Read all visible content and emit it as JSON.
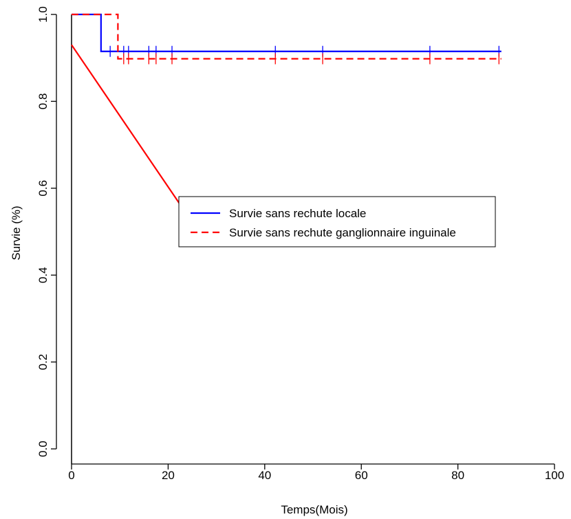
{
  "chart_data": {
    "type": "line",
    "title": "",
    "xlabel": "Temps(Mois)",
    "ylabel": "Survie (%)",
    "xlim": [
      0,
      100
    ],
    "ylim": [
      0,
      1
    ],
    "x_ticks": [
      0,
      20,
      40,
      60,
      80,
      100
    ],
    "y_ticks": [
      0.0,
      0.2,
      0.4,
      0.6,
      0.8,
      1.0
    ],
    "x_tick_labels": [
      "0",
      "20",
      "40",
      "60",
      "80",
      "100"
    ],
    "y_tick_labels": [
      "0.0",
      "0.2",
      "0.4",
      "0.6",
      "0.8",
      "1.0"
    ],
    "grid": false,
    "legend_position": "center-right",
    "series": [
      {
        "name": "Survie sans rechute locale",
        "color": "#0000ff",
        "line_style": "solid",
        "step": true,
        "points": [
          [
            0,
            1.0
          ],
          [
            6.1,
            1.0
          ],
          [
            6.1,
            0.915
          ],
          [
            89,
            0.915
          ]
        ],
        "censor_marks": [
          8,
          10.8,
          11.8,
          16,
          17.5,
          20.8,
          42.2,
          52,
          74.2,
          88.5
        ]
      },
      {
        "name": "Survie sans rechute ganglionnaire inguinale",
        "color": "#ff0000",
        "line_style": "dashed",
        "step": true,
        "points": [
          [
            0,
            1.0
          ],
          [
            9.6,
            1.0
          ],
          [
            9.6,
            0.898
          ],
          [
            89,
            0.898
          ]
        ],
        "censor_marks": [
          10.8,
          11.8,
          16,
          17.5,
          20.8,
          42.2,
          52,
          74.2,
          88.5
        ]
      }
    ],
    "annotations": [
      {
        "type": "line",
        "color": "#ff0000",
        "from": [
          0,
          0.93
        ],
        "to": [
          26,
          0.505
        ]
      }
    ],
    "legend": [
      {
        "label": "Survie sans rechute locale",
        "color": "#0000ff",
        "line_style": "solid"
      },
      {
        "label": "Survie sans rechute ganglionnaire inguinale",
        "color": "#ff0000",
        "line_style": "dashed"
      }
    ]
  }
}
